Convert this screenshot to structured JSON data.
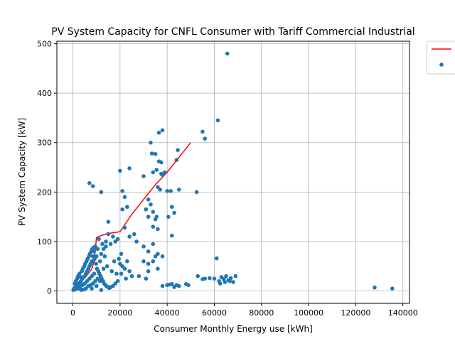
{
  "chart_data": {
    "type": "scatter",
    "title": "PV System Capacity for CNFL Consumer with Tariff Commercial Industrial",
    "xlabel": "Consumer Monthly Energy use [kWh]",
    "ylabel": "PV System Capacity [kW]",
    "xlim": [
      -6800,
      142800
    ],
    "ylim": [
      -25,
      505
    ],
    "xticks": [
      0,
      20000,
      40000,
      60000,
      80000,
      100000,
      120000,
      140000
    ],
    "xtick_labels": [
      "0",
      "20000",
      "40000",
      "60000",
      "80000",
      "100000",
      "120000",
      "140000"
    ],
    "yticks": [
      0,
      100,
      200,
      300,
      400,
      500
    ],
    "ytick_labels": [
      "0",
      "100",
      "200",
      "300",
      "400",
      "500"
    ],
    "grid": true,
    "legend": "top-right, outside plot",
    "colors": {
      "line": "#ff0000",
      "points": "#1f77b4"
    },
    "series": [
      {
        "kind": "line",
        "color": "#ff0000",
        "x": [
          0,
          1000,
          2000,
          3000,
          4000,
          5000,
          6000,
          7000,
          8000,
          9000,
          10000,
          12000,
          14000,
          16000,
          18000,
          20000,
          25000,
          30000,
          35000,
          40000,
          45000,
          50000
        ],
        "y": [
          0,
          8,
          12,
          18,
          22,
          28,
          32,
          38,
          45,
          60,
          108,
          112,
          115,
          117,
          118,
          120,
          155,
          185,
          215,
          240,
          270,
          300
        ]
      },
      {
        "kind": "scatter",
        "color": "#1f77b4",
        "points": [
          [
            65500,
            480
          ],
          [
            61500,
            345
          ],
          [
            55000,
            322
          ],
          [
            56000,
            308
          ],
          [
            38000,
            325
          ],
          [
            36500,
            320
          ],
          [
            33000,
            300
          ],
          [
            44500,
            285
          ],
          [
            33500,
            278
          ],
          [
            35000,
            277
          ],
          [
            44000,
            265
          ],
          [
            36500,
            262
          ],
          [
            37500,
            260
          ],
          [
            34000,
            240
          ],
          [
            35500,
            245
          ],
          [
            37500,
            237
          ],
          [
            24000,
            248
          ],
          [
            20000,
            243
          ],
          [
            38000,
            235
          ],
          [
            39000,
            240
          ],
          [
            30000,
            232
          ],
          [
            7000,
            218
          ],
          [
            8500,
            212
          ],
          [
            45000,
            205
          ],
          [
            40000,
            202
          ],
          [
            41500,
            202
          ],
          [
            52500,
            200
          ],
          [
            12000,
            200
          ],
          [
            21000,
            202
          ],
          [
            22000,
            190
          ],
          [
            36000,
            210
          ],
          [
            37000,
            205
          ],
          [
            32000,
            185
          ],
          [
            33000,
            175
          ],
          [
            31000,
            165
          ],
          [
            34000,
            160
          ],
          [
            42000,
            170
          ],
          [
            43000,
            158
          ],
          [
            35500,
            150
          ],
          [
            40500,
            150
          ],
          [
            35000,
            145
          ],
          [
            32000,
            150
          ],
          [
            21000,
            165
          ],
          [
            23000,
            170
          ],
          [
            15000,
            140
          ],
          [
            26000,
            115
          ],
          [
            24000,
            110
          ],
          [
            42000,
            112
          ],
          [
            34000,
            130
          ],
          [
            36000,
            125
          ],
          [
            22000,
            128
          ],
          [
            27000,
            100
          ],
          [
            30000,
            90
          ],
          [
            32000,
            80
          ],
          [
            34000,
            95
          ],
          [
            35000,
            70
          ],
          [
            36000,
            75
          ],
          [
            38000,
            70
          ],
          [
            30000,
            60
          ],
          [
            32000,
            55
          ],
          [
            34000,
            60
          ],
          [
            36000,
            45
          ],
          [
            32000,
            40
          ],
          [
            31000,
            25
          ],
          [
            28000,
            30
          ],
          [
            38000,
            10
          ],
          [
            40000,
            12
          ],
          [
            42000,
            14
          ],
          [
            44000,
            12
          ],
          [
            45000,
            10
          ],
          [
            43000,
            8
          ],
          [
            41000,
            13
          ],
          [
            48000,
            14
          ],
          [
            49000,
            12
          ],
          [
            53000,
            30
          ],
          [
            55000,
            24
          ],
          [
            56000,
            25
          ],
          [
            58000,
            26
          ],
          [
            60000,
            25
          ],
          [
            61000,
            66
          ],
          [
            62000,
            20
          ],
          [
            63000,
            28
          ],
          [
            64000,
            24
          ],
          [
            65000,
            30
          ],
          [
            66000,
            22
          ],
          [
            67000,
            26
          ],
          [
            68000,
            18
          ],
          [
            69000,
            30
          ],
          [
            62500,
            15
          ],
          [
            64500,
            18
          ],
          [
            66500,
            20
          ],
          [
            128000,
            7
          ],
          [
            135500,
            5
          ],
          [
            20000,
            55
          ],
          [
            21000,
            50
          ],
          [
            22000,
            45
          ],
          [
            23000,
            60
          ],
          [
            24000,
            40
          ],
          [
            25000,
            30
          ],
          [
            20500,
            35
          ],
          [
            22500,
            25
          ],
          [
            19000,
            20
          ],
          [
            18000,
            15
          ],
          [
            17000,
            10
          ],
          [
            16000,
            8
          ],
          [
            12000,
            2
          ],
          [
            15500,
            6
          ],
          [
            14000,
            90
          ],
          [
            16000,
            95
          ],
          [
            18000,
            100
          ],
          [
            13000,
            85
          ],
          [
            19000,
            105
          ],
          [
            17000,
            110
          ],
          [
            15000,
            115
          ],
          [
            14000,
            100
          ],
          [
            12500,
            95
          ],
          [
            11000,
            105
          ],
          [
            13500,
            70
          ],
          [
            12000,
            75
          ],
          [
            11500,
            60
          ],
          [
            14500,
            50
          ],
          [
            13000,
            45
          ],
          [
            16500,
            40
          ],
          [
            18500,
            35
          ],
          [
            17500,
            60
          ],
          [
            19500,
            65
          ],
          [
            20500,
            75
          ],
          [
            10500,
            85
          ],
          [
            9500,
            90
          ],
          [
            10000,
            70
          ],
          [
            9000,
            80
          ],
          [
            8500,
            70
          ],
          [
            8000,
            60
          ],
          [
            7500,
            55
          ],
          [
            7000,
            50
          ],
          [
            6500,
            45
          ],
          [
            6000,
            40
          ],
          [
            5500,
            35
          ],
          [
            5000,
            30
          ],
          [
            4500,
            28
          ],
          [
            4000,
            25
          ],
          [
            3500,
            20
          ],
          [
            3000,
            18
          ],
          [
            2500,
            15
          ],
          [
            2000,
            12
          ],
          [
            1500,
            10
          ],
          [
            1000,
            8
          ],
          [
            500,
            5
          ],
          [
            200,
            2
          ],
          [
            800,
            15
          ],
          [
            1200,
            20
          ],
          [
            1800,
            25
          ],
          [
            2200,
            30
          ],
          [
            2800,
            35
          ],
          [
            3200,
            28
          ],
          [
            3800,
            40
          ],
          [
            4200,
            45
          ],
          [
            4800,
            50
          ],
          [
            5200,
            55
          ],
          [
            5800,
            60
          ],
          [
            6200,
            65
          ],
          [
            6800,
            70
          ],
          [
            7200,
            75
          ],
          [
            7800,
            80
          ],
          [
            8200,
            85
          ],
          [
            8800,
            88
          ],
          [
            9200,
            65
          ],
          [
            9800,
            55
          ],
          [
            10200,
            45
          ],
          [
            10800,
            40
          ],
          [
            11200,
            35
          ],
          [
            11800,
            30
          ],
          [
            12200,
            25
          ],
          [
            12800,
            20
          ],
          [
            13200,
            15
          ],
          [
            13800,
            12
          ],
          [
            14200,
            10
          ],
          [
            14800,
            8
          ],
          [
            9000,
            35
          ],
          [
            8000,
            30
          ],
          [
            7000,
            25
          ],
          [
            6000,
            20
          ],
          [
            5000,
            15
          ],
          [
            4000,
            12
          ],
          [
            3000,
            8
          ],
          [
            2000,
            5
          ],
          [
            1000,
            3
          ],
          [
            6500,
            10
          ],
          [
            7500,
            12
          ],
          [
            8500,
            15
          ],
          [
            9500,
            20
          ],
          [
            10500,
            25
          ],
          [
            11500,
            20
          ],
          [
            5500,
            5
          ],
          [
            4500,
            3
          ],
          [
            3500,
            2
          ],
          [
            8000,
            5
          ],
          [
            10000,
            10
          ]
        ]
      }
    ]
  }
}
